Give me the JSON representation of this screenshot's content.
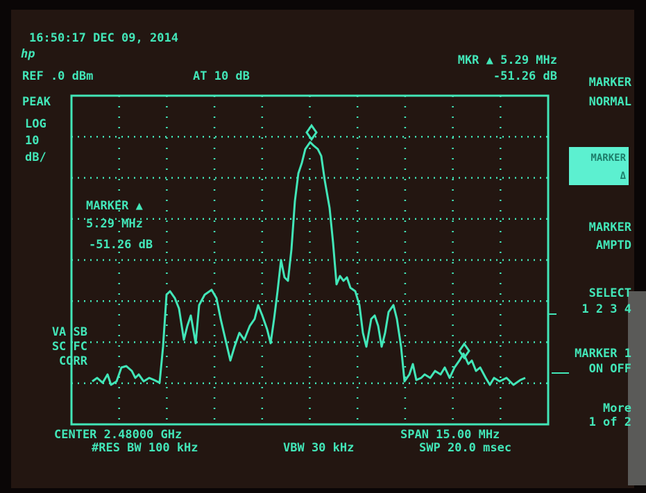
{
  "header": {
    "timestamp": "16:50:17 DEC 09, 2014",
    "logo": "hp",
    "ref_level": "REF .0 dBm",
    "attenuation": "AT 10 dB",
    "marker_readout": [
      "MKR ▲ 5.29 MHz",
      "-51.26 dB"
    ]
  },
  "left_panel": {
    "scale": [
      "PEAK",
      "LOG",
      "10",
      "dB/"
    ],
    "status": [
      "VA SB",
      "SC FC",
      "CORR"
    ]
  },
  "marker_annotation": [
    "MARKER ▲",
    "5.29 MHz",
    "-51.26 dB"
  ],
  "footer": {
    "center": "CENTER 2.48000 GHz",
    "rbw": "#RES BW 100 kHz",
    "vbw": "VBW 30 kHz",
    "span": "SPAN 15.00 MHz",
    "sweep": "SWP 20.0 msec"
  },
  "softkeys": [
    {
      "lines": [
        "MARKER",
        "NORMAL"
      ]
    },
    {
      "lines": [
        "MARKER",
        "Δ"
      ]
    },
    {
      "lines": [
        "MARKER",
        "AMPTD"
      ]
    },
    {
      "lines": [
        "SELECT",
        "1 2 3 4"
      ]
    },
    {
      "lines": [
        "MARKER 1",
        "ON OFF"
      ]
    },
    {
      "lines": [
        "More",
        "1 of 2"
      ]
    }
  ]
}
